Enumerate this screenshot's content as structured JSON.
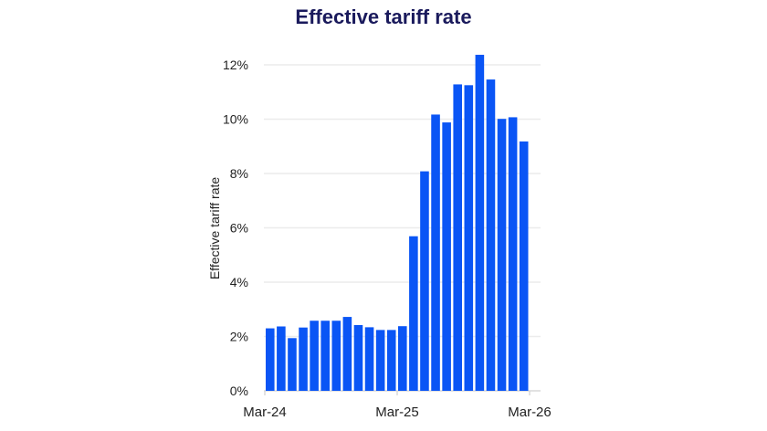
{
  "chart_data": {
    "type": "bar",
    "title": "Effective tariff rate",
    "xlabel": "",
    "ylabel": "Effective tariff rate",
    "ylim": [
      0,
      12
    ],
    "yticks": [
      "0%",
      "2%",
      "4%",
      "6%",
      "8%",
      "10%",
      "12%"
    ],
    "ytick_values": [
      0,
      2,
      4,
      6,
      8,
      10,
      12
    ],
    "xtick_labels": [
      "Mar-24",
      "Mar-25",
      "Mar-26"
    ],
    "grid": true,
    "categories": [
      "Mar-24",
      "Apr-24",
      "May-24",
      "Jun-24",
      "Jul-24",
      "Aug-24",
      "Sep-24",
      "Oct-24",
      "Nov-24",
      "Dec-24",
      "Jan-25",
      "Feb-25",
      "Mar-25",
      "Apr-25",
      "May-25",
      "Jun-25",
      "Jul-25",
      "Aug-25",
      "Sep-25",
      "Oct-25",
      "Nov-25",
      "Dec-25",
      "Jan-26",
      "Feb-26"
    ],
    "values": [
      2.3,
      2.37,
      1.94,
      2.33,
      2.58,
      2.58,
      2.58,
      2.72,
      2.42,
      2.34,
      2.24,
      2.24,
      2.38,
      5.69,
      8.08,
      10.17,
      9.88,
      11.28,
      11.25,
      12.37,
      11.46,
      10.01,
      10.07,
      9.18
    ],
    "bar_color": "#0a55f5",
    "title_color": "#1a1a5c"
  }
}
